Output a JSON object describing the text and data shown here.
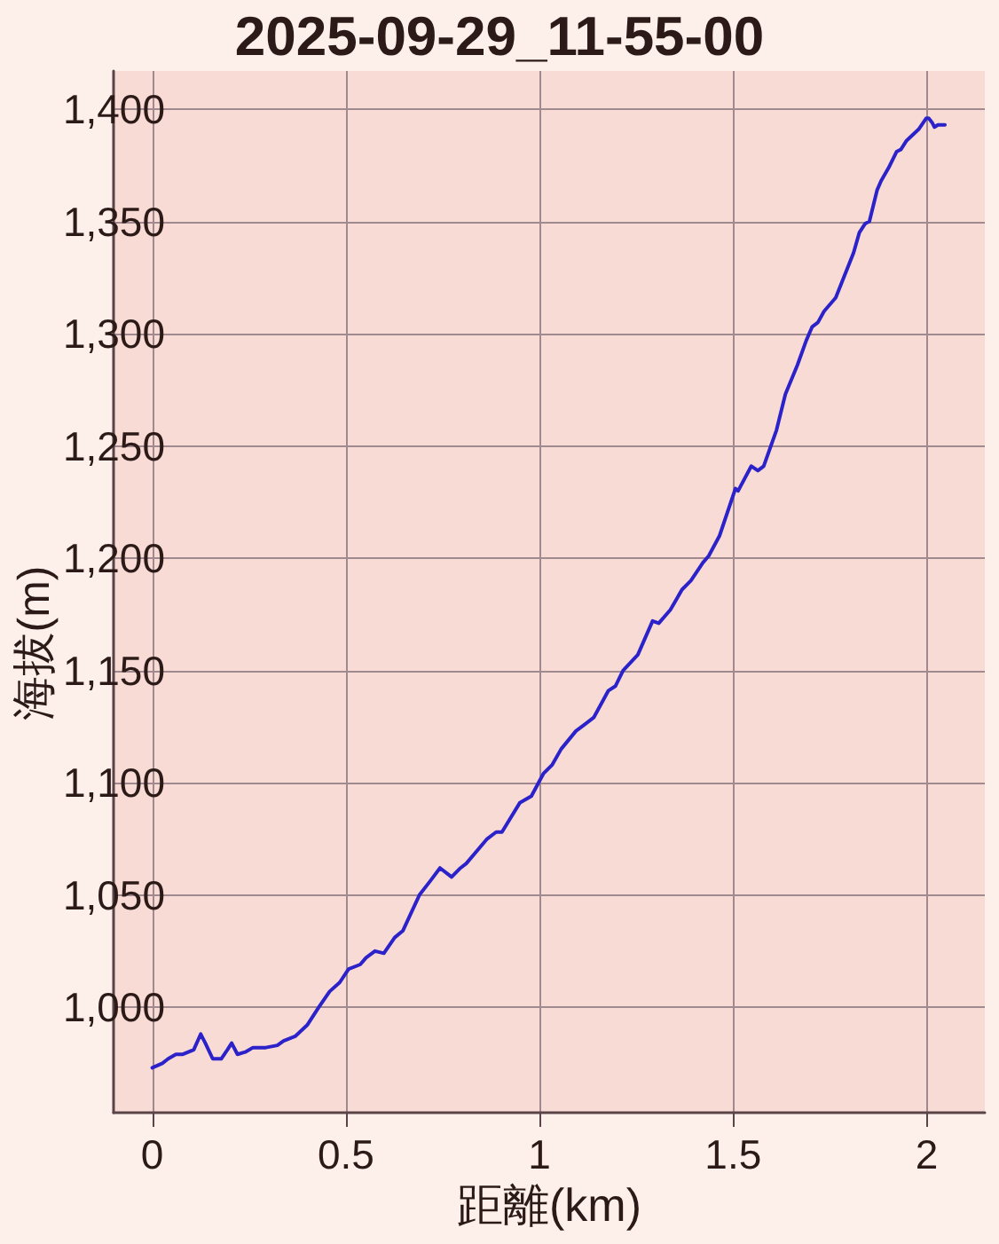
{
  "chart_data": {
    "type": "line",
    "title": "2025-09-29_11-55-00",
    "xlabel": "距離(km)",
    "ylabel": "海拔(m)",
    "x": [
      0,
      0.026,
      0.041,
      0.061,
      0.079,
      0.107,
      0.125,
      0.137,
      0.156,
      0.178,
      0.194,
      0.205,
      0.22,
      0.24,
      0.26,
      0.293,
      0.323,
      0.339,
      0.369,
      0.4,
      0.43,
      0.458,
      0.484,
      0.507,
      0.537,
      0.552,
      0.575,
      0.598,
      0.626,
      0.647,
      0.69,
      0.717,
      0.743,
      0.773,
      0.796,
      0.811,
      0.865,
      0.888,
      0.903,
      0.949,
      0.979,
      1.01,
      1.033,
      1.056,
      1.094,
      1.117,
      1.14,
      1.178,
      1.196,
      1.216,
      1.254,
      1.292,
      1.308,
      1.338,
      1.368,
      1.391,
      1.422,
      1.437,
      1.465,
      1.506,
      1.513,
      1.547,
      1.564,
      1.579,
      1.612,
      1.635,
      1.666,
      1.689,
      1.704,
      1.719,
      1.735,
      1.765,
      1.788,
      1.811,
      1.826,
      1.841,
      1.852,
      1.872,
      1.882,
      1.902,
      1.922,
      1.933,
      1.948,
      1.979,
      1.999,
      2.005,
      2.014,
      2.02,
      2.029,
      2.035,
      2.047
    ],
    "values": [
      973,
      975,
      977,
      979,
      979,
      981,
      988,
      984,
      977,
      977,
      981,
      984,
      979,
      980,
      982,
      982,
      983,
      985,
      987,
      992,
      1000,
      1007,
      1011,
      1017,
      1019,
      1022,
      1025,
      1024,
      1031,
      1034,
      1050,
      1056,
      1062,
      1058,
      1062,
      1064,
      1075,
      1078,
      1078,
      1091,
      1094,
      1104,
      1108,
      1115,
      1123,
      1126,
      1129,
      1141,
      1143,
      1150,
      1157,
      1172,
      1171,
      1177,
      1186,
      1190,
      1198,
      1201,
      1210,
      1231,
      1230,
      1241,
      1239,
      1241,
      1257,
      1273,
      1286,
      1297,
      1303,
      1305,
      1310,
      1316,
      1326,
      1336,
      1345,
      1349,
      1350,
      1364,
      1368,
      1374,
      1381,
      1382,
      1386,
      1391,
      1396,
      1396,
      1394,
      1392,
      1393,
      1393,
      1393
    ],
    "color": "#2b22c9",
    "xlim": [
      -0.1,
      2.15
    ],
    "xticks": [
      0,
      0.5,
      1,
      1.5,
      2
    ],
    "ylim": [
      953,
      1417
    ],
    "yticks": [
      {
        "value": 1000,
        "label": "1,000"
      },
      {
        "value": 1050,
        "label": "1,050"
      },
      {
        "value": 1100,
        "label": "1,100"
      },
      {
        "value": 1150,
        "label": "1,150"
      },
      {
        "value": 1200,
        "label": "1,200"
      },
      {
        "value": 1250,
        "label": "1,250"
      },
      {
        "value": 1300,
        "label": "1,300"
      },
      {
        "value": 1350,
        "label": "1,350"
      },
      {
        "value": 1400,
        "label": "1,400"
      }
    ],
    "grid": true,
    "marker": "none",
    "line_style": "solid"
  }
}
